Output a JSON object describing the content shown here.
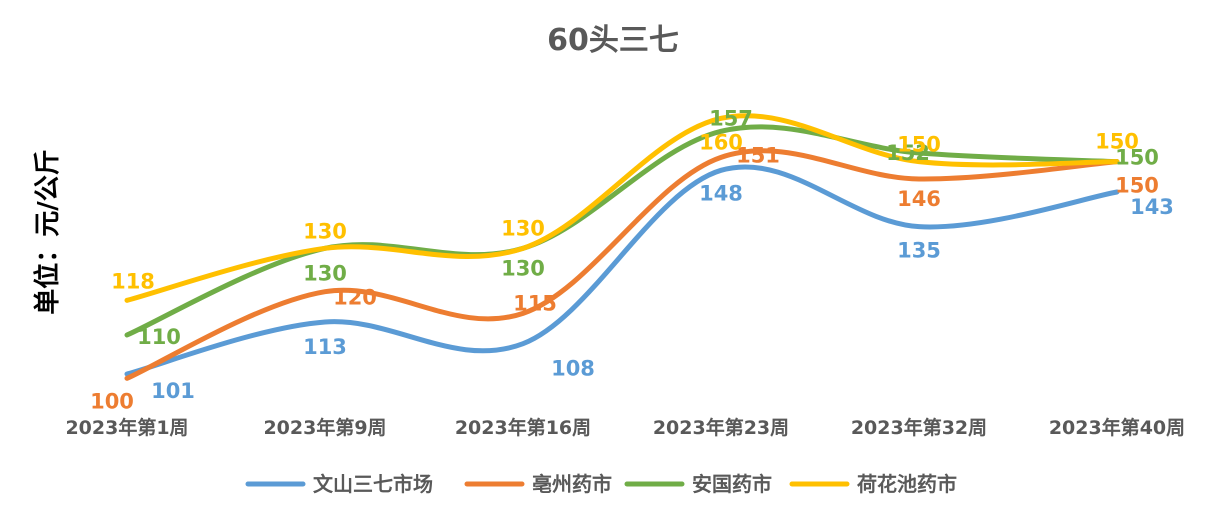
{
  "chart_data": {
    "type": "line",
    "title": "60头三七",
    "ylabel": "单位：元/公斤",
    "xlabel": "",
    "categories": [
      "2023年第1周",
      "2023年第9周",
      "2023年第16周",
      "2023年第23周",
      "2023年第32周",
      "2023年第40周"
    ],
    "ylim": [
      95,
      170
    ],
    "grid": false,
    "smooth": true,
    "legend_position": "bottom",
    "series": [
      {
        "name": "文山三七市场",
        "color": "#5B9BD5",
        "values": [
          101,
          113,
          108,
          148,
          135,
          143
        ]
      },
      {
        "name": "亳州药市",
        "color": "#ED7D31",
        "values": [
          100,
          120,
          115,
          151,
          146,
          150
        ]
      },
      {
        "name": "安国药市",
        "color": "#70AD47",
        "values": [
          110,
          130,
          130,
          157,
          152,
          150
        ]
      },
      {
        "name": "荷花池药市",
        "color": "#FFC000",
        "values": [
          118,
          130,
          130,
          160,
          150,
          150
        ]
      }
    ]
  }
}
